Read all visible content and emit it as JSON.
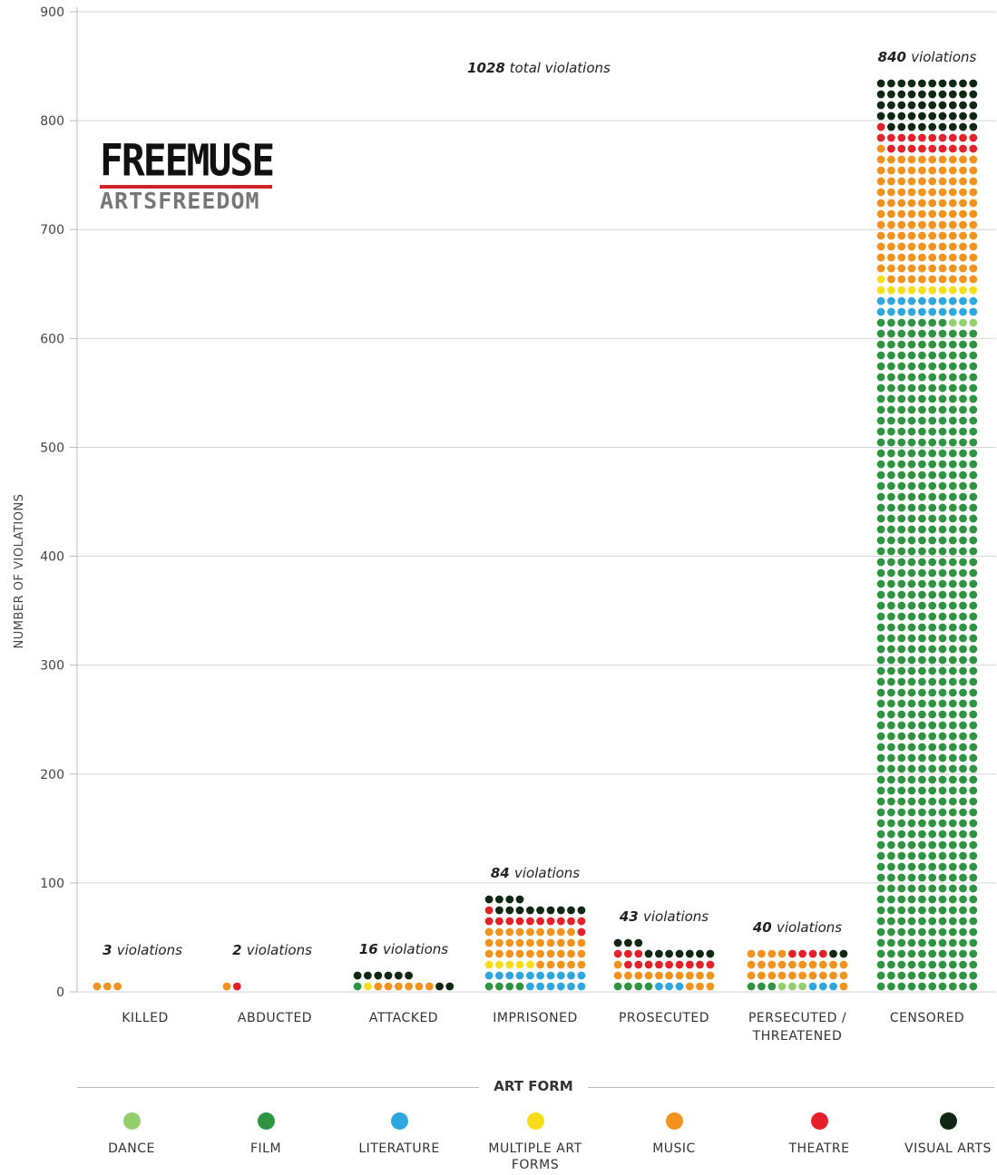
{
  "chart_data": {
    "type": "bar",
    "style": "stacked dot (waffle) columns, one dot per violation",
    "total_label": {
      "number": "1028",
      "text": "total violations"
    },
    "ylabel": "NUMBER OF VIOLATIONS",
    "xlabel": "ART FORM",
    "ylim": [
      0,
      900
    ],
    "yticks": [
      0,
      100,
      200,
      300,
      400,
      500,
      600,
      700,
      800,
      900
    ],
    "grid": true,
    "legend_placement": "bottom",
    "categories": [
      {
        "label": "KILLED",
        "total": 3,
        "annotation_number": "3",
        "annotation_text": "violations",
        "counts": {
          "Dance": 0,
          "Film": 0,
          "Literature": 0,
          "Multiple Art Forms": 0,
          "Music": 3,
          "Theatre": 0,
          "Visual Arts": 0
        }
      },
      {
        "label": "ABDUCTED",
        "total": 2,
        "annotation_number": "2",
        "annotation_text": "violations",
        "counts": {
          "Dance": 0,
          "Film": 0,
          "Literature": 0,
          "Multiple Art Forms": 0,
          "Music": 1,
          "Theatre": 1,
          "Visual Arts": 0
        }
      },
      {
        "label": "ATTACKED",
        "total": 16,
        "annotation_number": "16",
        "annotation_text": "violations",
        "counts": {
          "Dance": 0,
          "Film": 1,
          "Literature": 0,
          "Multiple Art Forms": 1,
          "Music": 6,
          "Theatre": 0,
          "Visual Arts": 8
        }
      },
      {
        "label": "IMPRISONED",
        "total": 84,
        "annotation_number": "84",
        "annotation_text": "violations",
        "counts": {
          "Dance": 0,
          "Film": 4,
          "Literature": 16,
          "Multiple Art Forms": 5,
          "Music": 34,
          "Theatre": 12,
          "Visual Arts": 13
        }
      },
      {
        "label": "PROSECUTED",
        "total": 43,
        "annotation_number": "43",
        "annotation_text": "violations",
        "counts": {
          "Dance": 0,
          "Film": 4,
          "Literature": 3,
          "Multiple Art Forms": 0,
          "Music": 14,
          "Theatre": 12,
          "Visual Arts": 10
        }
      },
      {
        "label": "PERSECUTED / THREATENED",
        "total": 40,
        "annotation_number": "40",
        "annotation_text": "violations",
        "counts": {
          "Dance": 3,
          "Film": 3,
          "Literature": 3,
          "Multiple Art Forms": 0,
          "Music": 25,
          "Theatre": 4,
          "Visual Arts": 2
        }
      },
      {
        "label": "CENSORED",
        "total": 840,
        "annotation_number": "840",
        "annotation_text": "violations",
        "counts": {
          "Dance": 3,
          "Film": 617,
          "Literature": 20,
          "Multiple Art Forms": 11,
          "Music": 120,
          "Theatre": 20,
          "Visual Arts": 49
        }
      }
    ],
    "series": [
      {
        "name": "DANCE",
        "key": "Dance",
        "color": "#94cf6e"
      },
      {
        "name": "FILM",
        "key": "Film",
        "color": "#2f9441"
      },
      {
        "name": "LITERATURE",
        "key": "Literature",
        "color": "#2ea6de"
      },
      {
        "name": "MULTIPLE ART FORMS",
        "key": "Multiple Art Forms",
        "color": "#f7dd1a"
      },
      {
        "name": "MUSIC",
        "key": "Music",
        "color": "#f2921f"
      },
      {
        "name": "THEATRE",
        "key": "Theatre",
        "color": "#e4212a"
      },
      {
        "name": "VISUAL ARTS",
        "key": "Visual Arts",
        "color": "#0f2713"
      }
    ]
  },
  "logo": {
    "top": "FREEMUSE",
    "bottom": "ARTSFREEDOM"
  },
  "legend": {
    "title": "ART FORM"
  }
}
